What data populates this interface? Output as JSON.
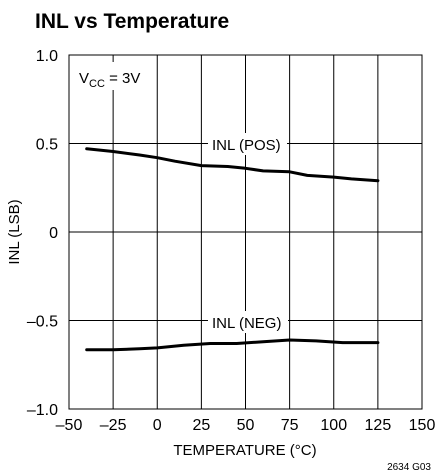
{
  "chart_data": {
    "type": "line",
    "title": "INL vs Temperature",
    "xlabel": "TEMPERATURE (°C)",
    "ylabel": "INL (LSB)",
    "xlim": [
      -50,
      150
    ],
    "ylim": [
      -1.0,
      1.0
    ],
    "x_ticks": [
      -50,
      -25,
      0,
      25,
      50,
      75,
      100,
      125,
      150
    ],
    "x_tick_labels": [
      "–50",
      "–25",
      "0",
      "25",
      "50",
      "75",
      "100",
      "125",
      "150"
    ],
    "y_ticks": [
      -1.0,
      -0.5,
      0,
      0.5,
      1.0
    ],
    "y_tick_labels": [
      "–1.0",
      "–0.5",
      "0",
      "0.5",
      "1.0"
    ],
    "grid": true,
    "condition": {
      "prefix": "V",
      "subscript": "CC",
      "suffix": " = 3V"
    },
    "figure_code": "2634 G03",
    "series": [
      {
        "name": "INL (POS)",
        "x": [
          -40,
          -25,
          -10,
          0,
          10,
          25,
          40,
          50,
          60,
          75,
          85,
          100,
          110,
          125
        ],
        "y": [
          0.47,
          0.455,
          0.435,
          0.42,
          0.4,
          0.375,
          0.37,
          0.36,
          0.345,
          0.34,
          0.32,
          0.31,
          0.3,
          0.29
        ]
      },
      {
        "name": "INL (NEG)",
        "x": [
          -40,
          -25,
          -10,
          0,
          15,
          30,
          45,
          60,
          75,
          90,
          105,
          125
        ],
        "y": [
          -0.665,
          -0.665,
          -0.66,
          -0.655,
          -0.64,
          -0.63,
          -0.63,
          -0.62,
          -0.61,
          -0.615,
          -0.625,
          -0.625
        ]
      }
    ]
  }
}
